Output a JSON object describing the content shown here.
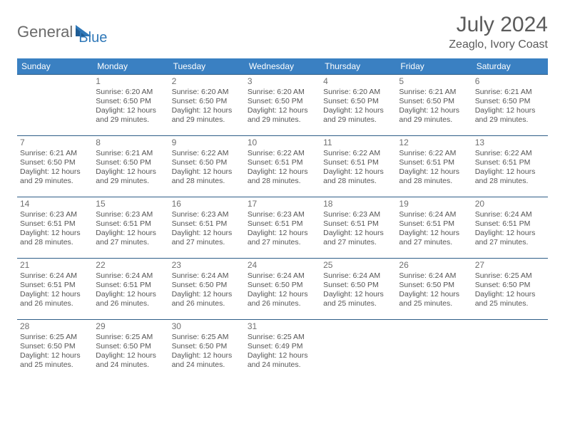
{
  "logo": {
    "text1": "General",
    "text2": "Blue"
  },
  "title": "July 2024",
  "location": "Zeaglo, Ivory Coast",
  "colors": {
    "header_bg": "#3a80c2",
    "header_text": "#ffffff",
    "row_border": "#2e5d87",
    "daynum": "#707070",
    "detail_text": "#555555",
    "title_text": "#5b5b5b",
    "logo_gray": "#6a6a6a",
    "logo_blue": "#2f78b8"
  },
  "weekdays": [
    "Sunday",
    "Monday",
    "Tuesday",
    "Wednesday",
    "Thursday",
    "Friday",
    "Saturday"
  ],
  "weeks": [
    [
      null,
      {
        "n": "1",
        "sr": "Sunrise: 6:20 AM",
        "ss": "Sunset: 6:50 PM",
        "d1": "Daylight: 12 hours",
        "d2": "and 29 minutes."
      },
      {
        "n": "2",
        "sr": "Sunrise: 6:20 AM",
        "ss": "Sunset: 6:50 PM",
        "d1": "Daylight: 12 hours",
        "d2": "and 29 minutes."
      },
      {
        "n": "3",
        "sr": "Sunrise: 6:20 AM",
        "ss": "Sunset: 6:50 PM",
        "d1": "Daylight: 12 hours",
        "d2": "and 29 minutes."
      },
      {
        "n": "4",
        "sr": "Sunrise: 6:20 AM",
        "ss": "Sunset: 6:50 PM",
        "d1": "Daylight: 12 hours",
        "d2": "and 29 minutes."
      },
      {
        "n": "5",
        "sr": "Sunrise: 6:21 AM",
        "ss": "Sunset: 6:50 PM",
        "d1": "Daylight: 12 hours",
        "d2": "and 29 minutes."
      },
      {
        "n": "6",
        "sr": "Sunrise: 6:21 AM",
        "ss": "Sunset: 6:50 PM",
        "d1": "Daylight: 12 hours",
        "d2": "and 29 minutes."
      }
    ],
    [
      {
        "n": "7",
        "sr": "Sunrise: 6:21 AM",
        "ss": "Sunset: 6:50 PM",
        "d1": "Daylight: 12 hours",
        "d2": "and 29 minutes."
      },
      {
        "n": "8",
        "sr": "Sunrise: 6:21 AM",
        "ss": "Sunset: 6:50 PM",
        "d1": "Daylight: 12 hours",
        "d2": "and 29 minutes."
      },
      {
        "n": "9",
        "sr": "Sunrise: 6:22 AM",
        "ss": "Sunset: 6:50 PM",
        "d1": "Daylight: 12 hours",
        "d2": "and 28 minutes."
      },
      {
        "n": "10",
        "sr": "Sunrise: 6:22 AM",
        "ss": "Sunset: 6:51 PM",
        "d1": "Daylight: 12 hours",
        "d2": "and 28 minutes."
      },
      {
        "n": "11",
        "sr": "Sunrise: 6:22 AM",
        "ss": "Sunset: 6:51 PM",
        "d1": "Daylight: 12 hours",
        "d2": "and 28 minutes."
      },
      {
        "n": "12",
        "sr": "Sunrise: 6:22 AM",
        "ss": "Sunset: 6:51 PM",
        "d1": "Daylight: 12 hours",
        "d2": "and 28 minutes."
      },
      {
        "n": "13",
        "sr": "Sunrise: 6:22 AM",
        "ss": "Sunset: 6:51 PM",
        "d1": "Daylight: 12 hours",
        "d2": "and 28 minutes."
      }
    ],
    [
      {
        "n": "14",
        "sr": "Sunrise: 6:23 AM",
        "ss": "Sunset: 6:51 PM",
        "d1": "Daylight: 12 hours",
        "d2": "and 28 minutes."
      },
      {
        "n": "15",
        "sr": "Sunrise: 6:23 AM",
        "ss": "Sunset: 6:51 PM",
        "d1": "Daylight: 12 hours",
        "d2": "and 27 minutes."
      },
      {
        "n": "16",
        "sr": "Sunrise: 6:23 AM",
        "ss": "Sunset: 6:51 PM",
        "d1": "Daylight: 12 hours",
        "d2": "and 27 minutes."
      },
      {
        "n": "17",
        "sr": "Sunrise: 6:23 AM",
        "ss": "Sunset: 6:51 PM",
        "d1": "Daylight: 12 hours",
        "d2": "and 27 minutes."
      },
      {
        "n": "18",
        "sr": "Sunrise: 6:23 AM",
        "ss": "Sunset: 6:51 PM",
        "d1": "Daylight: 12 hours",
        "d2": "and 27 minutes."
      },
      {
        "n": "19",
        "sr": "Sunrise: 6:24 AM",
        "ss": "Sunset: 6:51 PM",
        "d1": "Daylight: 12 hours",
        "d2": "and 27 minutes."
      },
      {
        "n": "20",
        "sr": "Sunrise: 6:24 AM",
        "ss": "Sunset: 6:51 PM",
        "d1": "Daylight: 12 hours",
        "d2": "and 27 minutes."
      }
    ],
    [
      {
        "n": "21",
        "sr": "Sunrise: 6:24 AM",
        "ss": "Sunset: 6:51 PM",
        "d1": "Daylight: 12 hours",
        "d2": "and 26 minutes."
      },
      {
        "n": "22",
        "sr": "Sunrise: 6:24 AM",
        "ss": "Sunset: 6:51 PM",
        "d1": "Daylight: 12 hours",
        "d2": "and 26 minutes."
      },
      {
        "n": "23",
        "sr": "Sunrise: 6:24 AM",
        "ss": "Sunset: 6:50 PM",
        "d1": "Daylight: 12 hours",
        "d2": "and 26 minutes."
      },
      {
        "n": "24",
        "sr": "Sunrise: 6:24 AM",
        "ss": "Sunset: 6:50 PM",
        "d1": "Daylight: 12 hours",
        "d2": "and 26 minutes."
      },
      {
        "n": "25",
        "sr": "Sunrise: 6:24 AM",
        "ss": "Sunset: 6:50 PM",
        "d1": "Daylight: 12 hours",
        "d2": "and 25 minutes."
      },
      {
        "n": "26",
        "sr": "Sunrise: 6:24 AM",
        "ss": "Sunset: 6:50 PM",
        "d1": "Daylight: 12 hours",
        "d2": "and 25 minutes."
      },
      {
        "n": "27",
        "sr": "Sunrise: 6:25 AM",
        "ss": "Sunset: 6:50 PM",
        "d1": "Daylight: 12 hours",
        "d2": "and 25 minutes."
      }
    ],
    [
      {
        "n": "28",
        "sr": "Sunrise: 6:25 AM",
        "ss": "Sunset: 6:50 PM",
        "d1": "Daylight: 12 hours",
        "d2": "and 25 minutes."
      },
      {
        "n": "29",
        "sr": "Sunrise: 6:25 AM",
        "ss": "Sunset: 6:50 PM",
        "d1": "Daylight: 12 hours",
        "d2": "and 24 minutes."
      },
      {
        "n": "30",
        "sr": "Sunrise: 6:25 AM",
        "ss": "Sunset: 6:50 PM",
        "d1": "Daylight: 12 hours",
        "d2": "and 24 minutes."
      },
      {
        "n": "31",
        "sr": "Sunrise: 6:25 AM",
        "ss": "Sunset: 6:49 PM",
        "d1": "Daylight: 12 hours",
        "d2": "and 24 minutes."
      },
      null,
      null,
      null
    ]
  ]
}
